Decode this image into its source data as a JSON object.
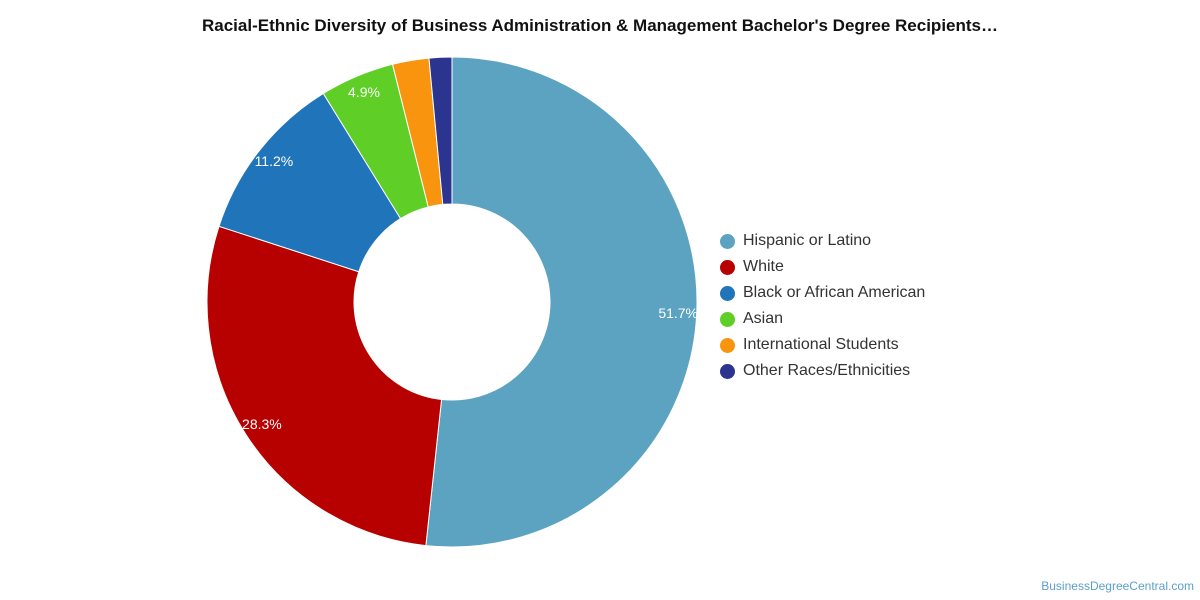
{
  "title": "Racial-Ethnic Diversity of Business Administration & Management Bachelor's Degree Recipients…",
  "credit": "BusinessDegreeCentral.com",
  "chart_data": {
    "type": "pie",
    "donut": true,
    "title": "Racial-Ethnic Diversity of Business Administration & Management Bachelor's Degree Recipients…",
    "legend_position": "right",
    "slices": [
      {
        "name": "Hispanic or Latino",
        "value": 51.7,
        "label": "51.7%",
        "color": "#5ba3c1"
      },
      {
        "name": "White",
        "value": 28.3,
        "label": "28.3%",
        "color": "#b70000"
      },
      {
        "name": "Black or African American",
        "value": 11.2,
        "label": "11.2%",
        "color": "#1f74ba"
      },
      {
        "name": "Asian",
        "value": 4.9,
        "label": "4.9%",
        "color": "#5fce27"
      },
      {
        "name": "International Students",
        "value": 2.4,
        "label": "",
        "color": "#f9940e"
      },
      {
        "name": "Other Races/Ethnicities",
        "value": 1.5,
        "label": "",
        "color": "#2b3590"
      }
    ]
  }
}
